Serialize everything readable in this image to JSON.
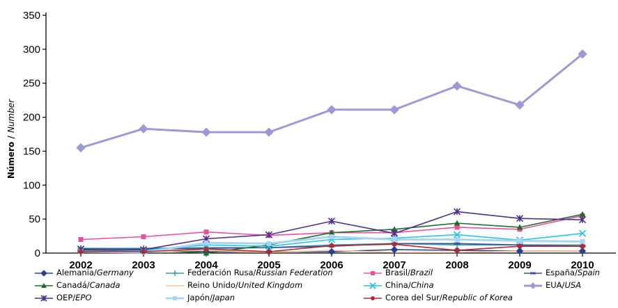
{
  "chart_data": {
    "type": "line",
    "title": "",
    "xlabel": "",
    "ylabel": "Número / Number",
    "ylabel_es": "Número",
    "ylabel_en": "Number",
    "ylim": [
      0,
      350
    ],
    "yticks": [
      0,
      50,
      100,
      150,
      200,
      250,
      300,
      350
    ],
    "categories": [
      "2002",
      "2003",
      "2004",
      "2005",
      "2006",
      "2007",
      "2008",
      "2009",
      "2010"
    ],
    "series": [
      {
        "name": "Alemania/Germany",
        "name_es": "Alemania/",
        "name_en": "Germany",
        "color": "#2b3f8f",
        "marker": "diamond",
        "values": [
          4,
          4,
          2,
          2,
          2,
          5,
          4,
          3,
          3
        ]
      },
      {
        "name": "Federación Rusa/Russian Federation",
        "name_es": "Federación Rusa/",
        "name_en": "Russian Federation",
        "color": "#3a9ca3",
        "marker": "plus",
        "values": [
          7,
          7,
          8,
          8,
          12,
          14,
          12,
          12,
          12
        ]
      },
      {
        "name": "Brasil/Brazil",
        "name_es": "Brasil/",
        "name_en": "Brazil",
        "color": "#e84fa0",
        "marker": "square",
        "values": [
          20,
          24,
          31,
          26,
          30,
          30,
          38,
          35,
          55
        ]
      },
      {
        "name": "España/Spain",
        "name_es": "España/",
        "name_en": "Spain",
        "color": "#3d4fa3",
        "marker": "dash",
        "values": [
          5,
          6,
          7,
          8,
          10,
          14,
          14,
          12,
          10
        ]
      },
      {
        "name": "Canadá/Canada",
        "name_es": "Canadá/",
        "name_en": "Canada",
        "color": "#1f6b2e",
        "marker": "triangle",
        "values": [
          5,
          5,
          0,
          12,
          30,
          35,
          44,
          38,
          57
        ]
      },
      {
        "name": "Reino Unido/United Kingdom",
        "name_es": "Reino Unido/",
        "name_en": "United Kingdom",
        "color": "#f5c89a",
        "marker": "none",
        "values": [
          2,
          2,
          4,
          1,
          4,
          1,
          1,
          3,
          3
        ]
      },
      {
        "name": "China/China",
        "name_es": "China/",
        "name_en": "China",
        "color": "#27c2e6",
        "marker": "x",
        "values": [
          6,
          4,
          12,
          10,
          20,
          22,
          27,
          19,
          29
        ]
      },
      {
        "name": "EUA/USA",
        "name_es": "EUA/",
        "name_en": "USA",
        "color": "#9c9ad6",
        "marker": "diamond",
        "values": [
          155,
          183,
          178,
          178,
          211,
          211,
          246,
          218,
          293
        ]
      },
      {
        "name": "OEP/EPO",
        "name_es": "OEP/",
        "name_en": "EPO",
        "color": "#4e2f8c",
        "marker": "star",
        "values": [
          6,
          5,
          21,
          27,
          47,
          29,
          61,
          51,
          49
        ]
      },
      {
        "name": "Japón/Japan",
        "name_es": "Japón/",
        "name_en": "Japan",
        "color": "#a9d4f2",
        "marker": "square",
        "values": [
          2,
          1,
          15,
          14,
          24,
          20,
          20,
          18,
          17
        ]
      },
      {
        "name": "Corea del Sur/Republic of Korea",
        "name_es": "Corea del Sur/",
        "name_en": "Republic of Korea",
        "color": "#b02a30",
        "marker": "dot",
        "values": [
          2,
          2,
          6,
          2,
          11,
          13,
          4,
          10,
          10
        ]
      }
    ],
    "legend_position": "bottom"
  },
  "legend_layout": [
    [
      "Alemania/Germany",
      "Federación Rusa/Russian Federation",
      "Brasil/Brazil",
      "España/Spain"
    ],
    [
      "Canadá/Canada",
      "Reino Unido/United Kingdom",
      "China/China",
      "EUA/USA"
    ],
    [
      "OEP/EPO",
      "Japón/Japan",
      "Corea del Sur/Republic of Korea"
    ]
  ]
}
